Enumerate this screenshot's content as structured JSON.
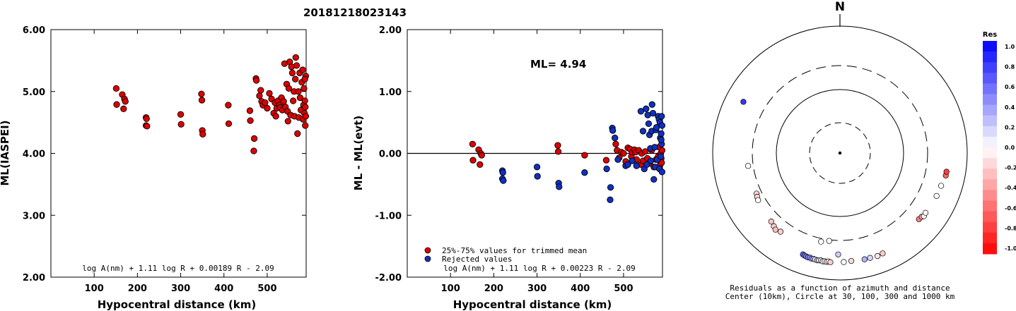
{
  "title": "20181218023143",
  "chart_data": [
    {
      "type": "scatter",
      "id": "left",
      "ylabel": "ML(IASPEI)",
      "xlabel": "Hypocentral distance (km)",
      "xticks": [
        "100",
        "200",
        "300",
        "400",
        "500"
      ],
      "yticks": [
        "2.00",
        "3.00",
        "4.00",
        "5.00",
        "6.00"
      ],
      "xlim": [
        0,
        590
      ],
      "ylim": [
        2.0,
        6.0
      ],
      "formula": "log A(nm) + 1.11 log R + 0.00189 R - 2.09",
      "points": [
        [
          151,
          5.05
        ],
        [
          152,
          4.79
        ],
        [
          165,
          4.95
        ],
        [
          170,
          4.88
        ],
        [
          168,
          4.72
        ],
        [
          172,
          4.84
        ],
        [
          220,
          4.58
        ],
        [
          221,
          4.56
        ],
        [
          220,
          4.45
        ],
        [
          222,
          4.44
        ],
        [
          300,
          4.63
        ],
        [
          301,
          4.47
        ],
        [
          348,
          4.96
        ],
        [
          349,
          4.86
        ],
        [
          350,
          4.37
        ],
        [
          351,
          4.31
        ],
        [
          410,
          4.78
        ],
        [
          411,
          4.48
        ],
        [
          460,
          4.69
        ],
        [
          461,
          4.53
        ],
        [
          470,
          4.24
        ],
        [
          469,
          4.04
        ],
        [
          474,
          5.21
        ],
        [
          475,
          5.18
        ],
        [
          482,
          4.93
        ],
        [
          485,
          5.02
        ],
        [
          487,
          4.84
        ],
        [
          490,
          4.78
        ],
        [
          495,
          4.82
        ],
        [
          500,
          4.73
        ],
        [
          505,
          4.97
        ],
        [
          510,
          4.88
        ],
        [
          515,
          4.65
        ],
        [
          518,
          4.82
        ],
        [
          520,
          4.6
        ],
        [
          522,
          4.73
        ],
        [
          525,
          4.85
        ],
        [
          528,
          4.78
        ],
        [
          530,
          4.74
        ],
        [
          533,
          4.9
        ],
        [
          535,
          4.7
        ],
        [
          538,
          4.84
        ],
        [
          540,
          5.45
        ],
        [
          542,
          4.75
        ],
        [
          545,
          5.12
        ],
        [
          547,
          4.68
        ],
        [
          548,
          4.52
        ],
        [
          550,
          5.05
        ],
        [
          552,
          5.48
        ],
        [
          554,
          4.62
        ],
        [
          556,
          5.4
        ],
        [
          558,
          5.3
        ],
        [
          560,
          4.85
        ],
        [
          562,
          5.0
        ],
        [
          563,
          4.6
        ],
        [
          565,
          5.2
        ],
        [
          566,
          5.55
        ],
        [
          568,
          5.42
        ],
        [
          570,
          4.32
        ],
        [
          572,
          5.0
        ],
        [
          573,
          4.58
        ],
        [
          575,
          5.3
        ],
        [
          576,
          4.9
        ],
        [
          578,
          4.7
        ],
        [
          580,
          5.15
        ],
        [
          582,
          5.35
        ],
        [
          583,
          4.55
        ],
        [
          584,
          4.78
        ],
        [
          585,
          5.05
        ],
        [
          586,
          4.65
        ],
        [
          587,
          4.85
        ],
        [
          588,
          4.45
        ],
        [
          589,
          5.25
        ],
        [
          589,
          4.6
        ],
        [
          588,
          4.75
        ],
        [
          587,
          5.2
        ]
      ]
    },
    {
      "type": "scatter",
      "id": "middle",
      "ylabel": "ML - ML(evt)",
      "xlabel": "Hypocentral distance (km)",
      "xticks": [
        "100",
        "200",
        "300",
        "400",
        "500"
      ],
      "yticks": [
        "-2.00",
        "-1.00",
        "0.00",
        "1.00",
        "2.00"
      ],
      "xlim": [
        0,
        590
      ],
      "ylim": [
        -2.0,
        2.0
      ],
      "annotation": "ML= 4.94",
      "formula": "log A(nm) + 1.11 log R + 0.00223 R - 2.09",
      "legend": [
        "25%-75% values for trimmed mean",
        "Rejected values"
      ],
      "legend_position": "bottom-left",
      "series": [
        {
          "name": "25%-75% values for trimmed mean",
          "color": "#dd0000",
          "points": [
            [
              151,
              0.15
            ],
            [
              152,
              -0.11
            ],
            [
              165,
              0.06
            ],
            [
              170,
              0.0
            ],
            [
              168,
              -0.18
            ],
            [
              172,
              -0.03
            ],
            [
              348,
              0.13
            ],
            [
              349,
              0.03
            ],
            [
              410,
              -0.03
            ],
            [
              460,
              -0.11
            ],
            [
              482,
              0.15
            ],
            [
              485,
              0.05
            ],
            [
              490,
              -0.07
            ],
            [
              495,
              0.02
            ],
            [
              500,
              0.0
            ],
            [
              505,
              -0.13
            ],
            [
              510,
              0.09
            ],
            [
              515,
              0.07
            ],
            [
              518,
              -0.05
            ],
            [
              520,
              0.02
            ],
            [
              525,
              0.06
            ],
            [
              528,
              0.02
            ],
            [
              530,
              -0.1
            ],
            [
              535,
              0.05
            ],
            [
              540,
              -0.18
            ],
            [
              542,
              0.0
            ],
            [
              545,
              -0.12
            ],
            [
              550,
              0.03
            ],
            [
              555,
              -0.08
            ],
            [
              560,
              -0.16
            ],
            [
              565,
              0.05
            ],
            [
              570,
              -0.22
            ],
            [
              575,
              -0.1
            ],
            [
              580,
              -0.05
            ],
            [
              582,
              0.1
            ],
            [
              585,
              -0.18
            ],
            [
              586,
              0.0
            ],
            [
              587,
              -0.08
            ],
            [
              588,
              -0.15
            ],
            [
              589,
              0.05
            ]
          ]
        },
        {
          "name": "Rejected values",
          "color": "#1030c0",
          "points": [
            [
              220,
              -0.28
            ],
            [
              221,
              -0.31
            ],
            [
              220,
              -0.41
            ],
            [
              222,
              -0.44
            ],
            [
              300,
              -0.22
            ],
            [
              301,
              -0.37
            ],
            [
              350,
              -0.48
            ],
            [
              351,
              -0.54
            ],
            [
              410,
              -0.31
            ],
            [
              461,
              -0.25
            ],
            [
              470,
              -0.55
            ],
            [
              469,
              -0.75
            ],
            [
              474,
              0.41
            ],
            [
              475,
              0.37
            ],
            [
              480,
              0.25
            ],
            [
              487,
              -0.1
            ],
            [
              505,
              -0.2
            ],
            [
              510,
              -0.18
            ],
            [
              520,
              -0.12
            ],
            [
              530,
              -0.2
            ],
            [
              540,
              0.68
            ],
            [
              545,
              0.36
            ],
            [
              548,
              -0.25
            ],
            [
              552,
              0.72
            ],
            [
              554,
              -0.18
            ],
            [
              556,
              0.62
            ],
            [
              558,
              0.48
            ],
            [
              560,
              0.3
            ],
            [
              562,
              0.08
            ],
            [
              563,
              -0.12
            ],
            [
              565,
              0.36
            ],
            [
              566,
              0.79
            ],
            [
              568,
              0.65
            ],
            [
              570,
              -0.42
            ],
            [
              572,
              0.1
            ],
            [
              573,
              -0.22
            ],
            [
              575,
              0.38
            ],
            [
              576,
              0.42
            ],
            [
              578,
              -0.1
            ],
            [
              580,
              0.6
            ],
            [
              582,
              0.55
            ],
            [
              583,
              -0.25
            ],
            [
              584,
              0.5
            ],
            [
              585,
              0.25
            ],
            [
              586,
              -0.05
            ],
            [
              587,
              0.32
            ],
            [
              588,
              0.15
            ],
            [
              589,
              -0.3
            ],
            [
              589,
              0.45
            ],
            [
              588,
              0.6
            ],
            [
              587,
              0.22
            ]
          ]
        }
      ]
    },
    {
      "type": "polar-scatter",
      "id": "right",
      "north_label": "N",
      "caption_line1": "Residuals as a function of azimuth and distance",
      "caption_line2": "Center (10km), Circle at 30, 100, 300 and 1000 km",
      "rings_km": [
        30,
        100,
        300,
        1000
      ],
      "colorbar": {
        "title": "Res",
        "ticks": [
          "1.0",
          "0.8",
          "0.6",
          "0.4",
          "0.2",
          "0.0",
          "-0.2",
          "-0.4",
          "-0.6",
          "-0.8",
          "-1.0"
        ],
        "range": [
          -1.0,
          1.0
        ]
      },
      "points": [
        {
          "az": 298,
          "dist": 580,
          "res": 0.79
        },
        {
          "az": 262,
          "dist": 350,
          "res": 0.0
        },
        {
          "az": 244,
          "dist": 350,
          "res": -0.18
        },
        {
          "az": 242,
          "dist": 360,
          "res": -0.15
        },
        {
          "az": 240,
          "dist": 370,
          "res": 0.0
        },
        {
          "az": 225,
          "dist": 400,
          "res": -0.22
        },
        {
          "az": 222,
          "dist": 420,
          "res": -0.2
        },
        {
          "az": 220,
          "dist": 440,
          "res": -0.25
        },
        {
          "az": 217,
          "dist": 420,
          "res": -0.18
        },
        {
          "az": 187,
          "dist": 310,
          "res": 0.0
        },
        {
          "az": 192,
          "dist": 330,
          "res": 0.0
        },
        {
          "az": 200,
          "dist": 560,
          "res": 0.6
        },
        {
          "az": 199,
          "dist": 570,
          "res": 0.55
        },
        {
          "az": 198,
          "dist": 575,
          "res": 0.5
        },
        {
          "az": 197,
          "dist": 580,
          "res": 0.45
        },
        {
          "az": 196,
          "dist": 575,
          "res": 0.42
        },
        {
          "az": 195,
          "dist": 585,
          "res": 0.38
        },
        {
          "az": 194,
          "dist": 580,
          "res": 0.3
        },
        {
          "az": 193,
          "dist": 585,
          "res": 0.0
        },
        {
          "az": 192,
          "dist": 590,
          "res": 0.25
        },
        {
          "az": 191,
          "dist": 585,
          "res": -0.1
        },
        {
          "az": 190,
          "dist": 580,
          "res": 0.1
        },
        {
          "az": 189,
          "dist": 590,
          "res": -0.05
        },
        {
          "az": 188,
          "dist": 585,
          "res": 0.0
        },
        {
          "az": 187,
          "dist": 590,
          "res": -0.12
        },
        {
          "az": 186,
          "dist": 580,
          "res": 0.0
        },
        {
          "az": 185,
          "dist": 590,
          "res": -0.2
        },
        {
          "az": 181,
          "dist": 460,
          "res": 0.2
        },
        {
          "az": 178,
          "dist": 580,
          "res": 0.0
        },
        {
          "az": 174,
          "dist": 570,
          "res": -0.15
        },
        {
          "az": 167,
          "dist": 580,
          "res": 0.3
        },
        {
          "az": 164,
          "dist": 580,
          "res": 0.15
        },
        {
          "az": 160,
          "dist": 590,
          "res": -0.1
        },
        {
          "az": 157,
          "dist": 580,
          "res": -0.2
        },
        {
          "az": 130,
          "dist": 480,
          "res": -0.5
        },
        {
          "az": 128,
          "dist": 490,
          "res": -0.4
        },
        {
          "az": 127,
          "dist": 510,
          "res": 0.0
        },
        {
          "az": 125,
          "dist": 500,
          "res": -0.05
        },
        {
          "az": 114,
          "dist": 520,
          "res": 0.0
        },
        {
          "az": 108,
          "dist": 530,
          "res": 0.0
        },
        {
          "az": 102,
          "dist": 560,
          "res": -0.6
        },
        {
          "az": 100,
          "dist": 560,
          "res": -0.75
        }
      ]
    }
  ]
}
